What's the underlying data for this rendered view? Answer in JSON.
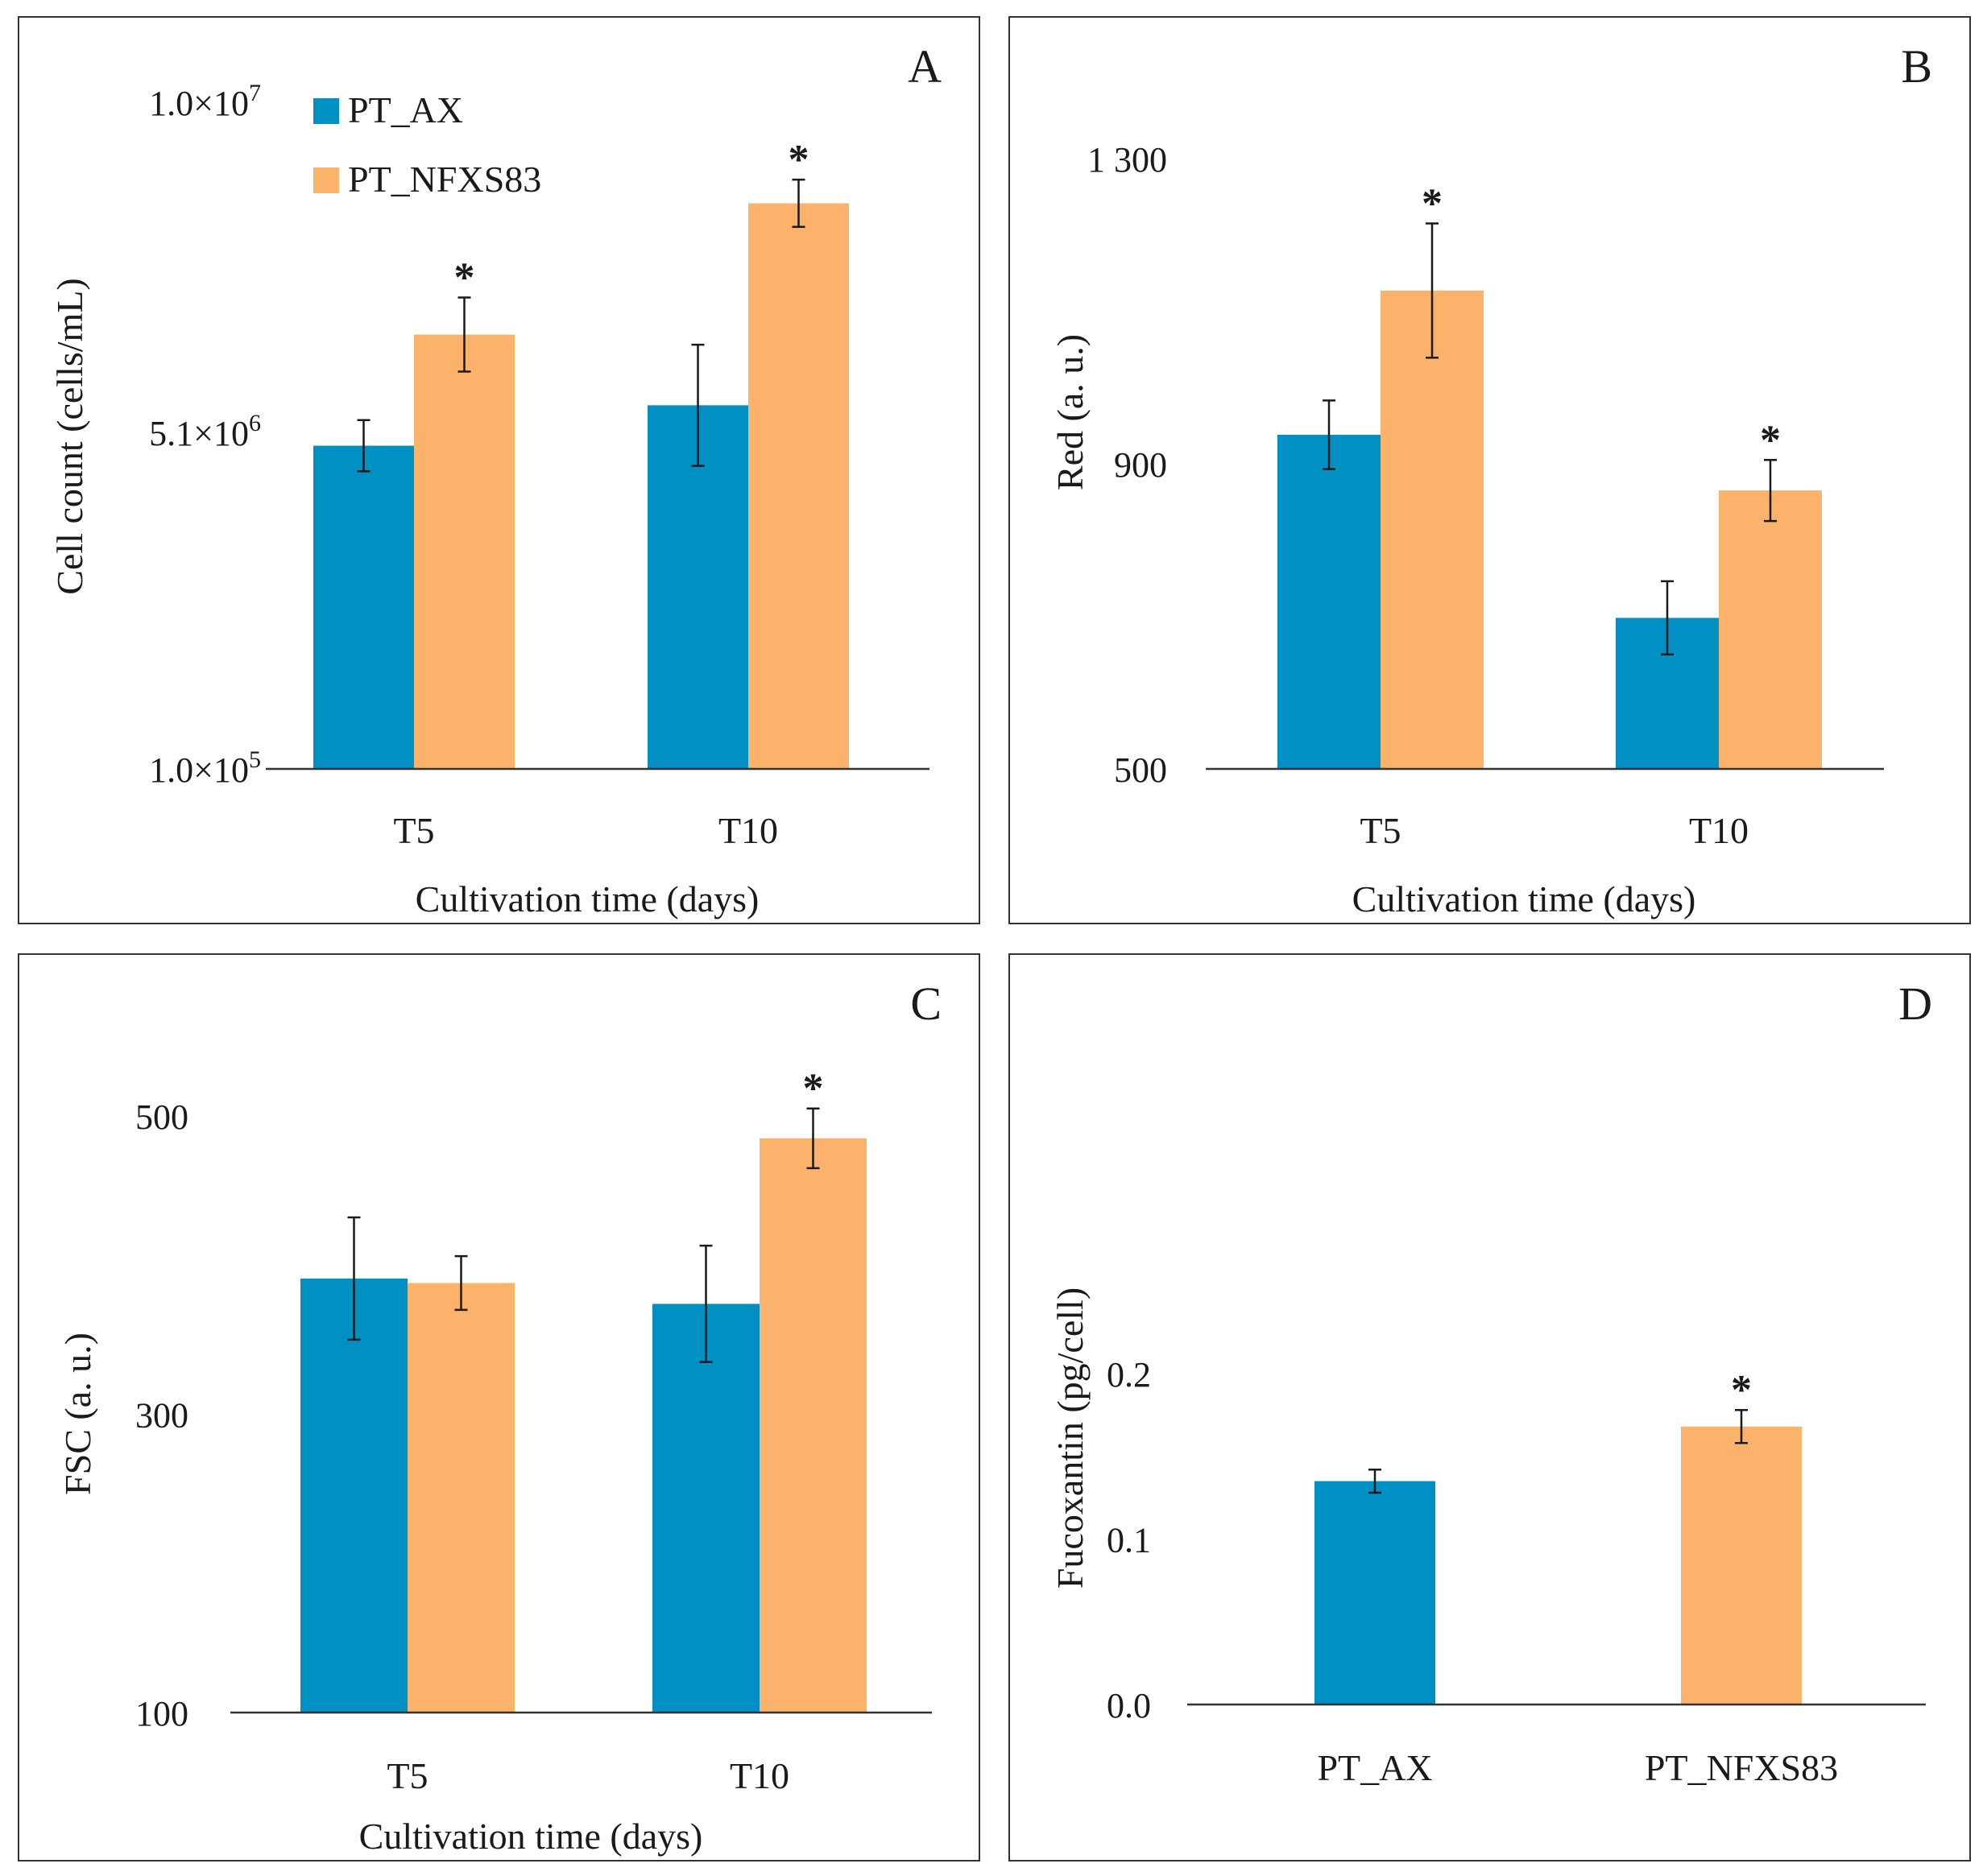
{
  "colors": {
    "PT_AX": "#0090c4",
    "PT_NFXS83": "#fbb26b"
  },
  "legend": [
    {
      "label": "PT_AX",
      "color": "#0090c4"
    },
    {
      "label": "PT_NFXS83",
      "color": "#fbb26b"
    }
  ],
  "significance_marker": "*",
  "chart_data": [
    {
      "panel": "A",
      "type": "bar",
      "ylabel": "Cell count (cells/mL)",
      "xlabel": "Cultivation time (days)",
      "categories": [
        "T5",
        "T10"
      ],
      "ytick_labels": [
        {
          "mantissa": "1.0×10",
          "exp": "5",
          "value": 100000
        },
        {
          "mantissa": "5.1×10",
          "exp": "6",
          "value": 5100000
        },
        {
          "mantissa": "1.0×10",
          "exp": "7",
          "value": 10000000
        }
      ],
      "ylim": [
        100000,
        10000000
      ],
      "series": [
        {
          "name": "PT_AX",
          "values": [
            4900000,
            5500000
          ],
          "errors": [
            380000,
            900000
          ],
          "sig": [
            false,
            false
          ]
        },
        {
          "name": "PT_NFXS83",
          "values": [
            6550000,
            8500000
          ],
          "errors": [
            550000,
            350000
          ],
          "sig": [
            true,
            true
          ]
        }
      ],
      "legend_visible": true
    },
    {
      "panel": "B",
      "type": "bar",
      "ylabel": "Red (a. u.)",
      "xlabel": "Cultivation time (days)",
      "categories": [
        "T5",
        "T10"
      ],
      "ytick_labels": [
        {
          "mantissa": "500",
          "exp": "",
          "value": 500
        },
        {
          "mantissa": "900",
          "exp": "",
          "value": 900
        },
        {
          "mantissa": "1 300",
          "exp": "",
          "value": 1300
        }
      ],
      "ylim": [
        500,
        1300
      ],
      "series": [
        {
          "name": "PT_AX",
          "values": [
            938,
            698
          ],
          "errors": [
            45,
            48
          ],
          "sig": [
            false,
            false
          ]
        },
        {
          "name": "PT_NFXS83",
          "values": [
            1127,
            865
          ],
          "errors": [
            88,
            40
          ],
          "sig": [
            true,
            true
          ]
        }
      ],
      "legend_visible": false
    },
    {
      "panel": "C",
      "type": "bar",
      "ylabel": "FSC (a. u.)",
      "xlabel": "Cultivation time (days)",
      "categories": [
        "T5",
        "T10"
      ],
      "ytick_labels": [
        {
          "mantissa": "100",
          "exp": "",
          "value": 100
        },
        {
          "mantissa": "300",
          "exp": "",
          "value": 300
        },
        {
          "mantissa": "500",
          "exp": "",
          "value": 500
        }
      ],
      "ylim": [
        100,
        500
      ],
      "series": [
        {
          "name": "PT_AX",
          "values": [
            391,
            374
          ],
          "errors": [
            41,
            39
          ],
          "sig": [
            false,
            false
          ]
        },
        {
          "name": "PT_NFXS83",
          "values": [
            388,
            485
          ],
          "errors": [
            18,
            20
          ],
          "sig": [
            false,
            true
          ]
        }
      ],
      "legend_visible": false
    },
    {
      "panel": "D",
      "type": "bar",
      "ylabel": "Fucoxantin (pg/cell)",
      "xlabel": "",
      "categories": [
        "PT_AX",
        "PT_NFXS83"
      ],
      "ytick_labels": [
        {
          "mantissa": "0.0",
          "exp": "",
          "value": 0
        },
        {
          "mantissa": "0.1",
          "exp": "",
          "value": 0.1
        },
        {
          "mantissa": "0.2",
          "exp": "",
          "value": 0.2
        }
      ],
      "ylim": [
        0,
        0.2
      ],
      "series": [
        {
          "name": "Fucoxantin",
          "values": [
            0.135,
            0.168
          ],
          "errors": [
            0.007,
            0.01
          ],
          "sig": [
            false,
            true
          ],
          "colors": [
            "#0090c4",
            "#fbb26b"
          ]
        }
      ],
      "legend_visible": false
    }
  ]
}
